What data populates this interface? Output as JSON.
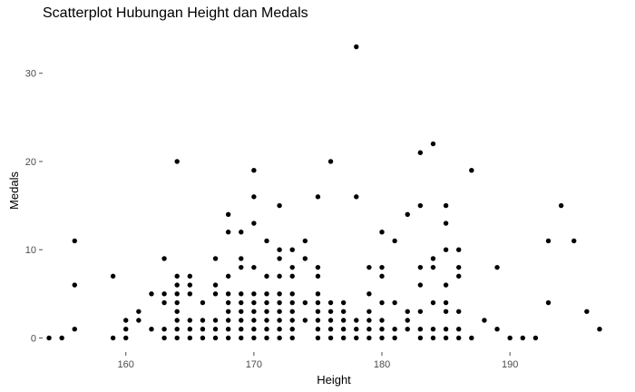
{
  "chart_data": {
    "type": "scatter",
    "title": "Scatterplot Hubungan Height dan Medals",
    "xlabel": "Height",
    "ylabel": "Medals",
    "xlim": [
      153.5,
      197.5
    ],
    "ylim": [
      -1.6,
      34.6
    ],
    "xticks": [
      160,
      170,
      180,
      190
    ],
    "yticks": [
      0,
      10,
      20,
      30
    ],
    "grid": false,
    "legend": "none",
    "point_color": "#000000",
    "points": [
      {
        "x": 154,
        "y": 0
      },
      {
        "x": 155,
        "y": 0
      },
      {
        "x": 156,
        "y": 1
      },
      {
        "x": 156,
        "y": 6
      },
      {
        "x": 156,
        "y": 11
      },
      {
        "x": 159,
        "y": 0
      },
      {
        "x": 159,
        "y": 7
      },
      {
        "x": 160,
        "y": 0
      },
      {
        "x": 160,
        "y": 1
      },
      {
        "x": 160,
        "y": 2
      },
      {
        "x": 161,
        "y": 2
      },
      {
        "x": 161,
        "y": 3
      },
      {
        "x": 162,
        "y": 1
      },
      {
        "x": 162,
        "y": 5
      },
      {
        "x": 163,
        "y": 0
      },
      {
        "x": 163,
        "y": 1
      },
      {
        "x": 163,
        "y": 4
      },
      {
        "x": 163,
        "y": 5
      },
      {
        "x": 163,
        "y": 9
      },
      {
        "x": 164,
        "y": 0
      },
      {
        "x": 164,
        "y": 1
      },
      {
        "x": 164,
        "y": 2
      },
      {
        "x": 164,
        "y": 3
      },
      {
        "x": 164,
        "y": 4
      },
      {
        "x": 164,
        "y": 5
      },
      {
        "x": 164,
        "y": 6
      },
      {
        "x": 164,
        "y": 7
      },
      {
        "x": 164,
        "y": 20
      },
      {
        "x": 165,
        "y": 0
      },
      {
        "x": 165,
        "y": 1
      },
      {
        "x": 165,
        "y": 2
      },
      {
        "x": 165,
        "y": 5
      },
      {
        "x": 165,
        "y": 6
      },
      {
        "x": 165,
        "y": 7
      },
      {
        "x": 166,
        "y": 0
      },
      {
        "x": 166,
        "y": 1
      },
      {
        "x": 166,
        "y": 2
      },
      {
        "x": 166,
        "y": 4
      },
      {
        "x": 167,
        "y": 0
      },
      {
        "x": 167,
        "y": 1
      },
      {
        "x": 167,
        "y": 2
      },
      {
        "x": 167,
        "y": 5
      },
      {
        "x": 167,
        "y": 6
      },
      {
        "x": 167,
        "y": 9
      },
      {
        "x": 168,
        "y": 0
      },
      {
        "x": 168,
        "y": 1
      },
      {
        "x": 168,
        "y": 2
      },
      {
        "x": 168,
        "y": 3
      },
      {
        "x": 168,
        "y": 4
      },
      {
        "x": 168,
        "y": 5
      },
      {
        "x": 168,
        "y": 7
      },
      {
        "x": 168,
        "y": 12
      },
      {
        "x": 168,
        "y": 14
      },
      {
        "x": 169,
        "y": 0
      },
      {
        "x": 169,
        "y": 1
      },
      {
        "x": 169,
        "y": 2
      },
      {
        "x": 169,
        "y": 3
      },
      {
        "x": 169,
        "y": 4
      },
      {
        "x": 169,
        "y": 5
      },
      {
        "x": 169,
        "y": 8
      },
      {
        "x": 169,
        "y": 9
      },
      {
        "x": 169,
        "y": 12
      },
      {
        "x": 170,
        "y": 0
      },
      {
        "x": 170,
        "y": 1
      },
      {
        "x": 170,
        "y": 2
      },
      {
        "x": 170,
        "y": 3
      },
      {
        "x": 170,
        "y": 4
      },
      {
        "x": 170,
        "y": 5
      },
      {
        "x": 170,
        "y": 8
      },
      {
        "x": 170,
        "y": 13
      },
      {
        "x": 170,
        "y": 16
      },
      {
        "x": 170,
        "y": 19
      },
      {
        "x": 171,
        "y": 0
      },
      {
        "x": 171,
        "y": 1
      },
      {
        "x": 171,
        "y": 2
      },
      {
        "x": 171,
        "y": 3
      },
      {
        "x": 171,
        "y": 4
      },
      {
        "x": 171,
        "y": 5
      },
      {
        "x": 171,
        "y": 7
      },
      {
        "x": 171,
        "y": 11
      },
      {
        "x": 172,
        "y": 0
      },
      {
        "x": 172,
        "y": 1
      },
      {
        "x": 172,
        "y": 2
      },
      {
        "x": 172,
        "y": 3
      },
      {
        "x": 172,
        "y": 4
      },
      {
        "x": 172,
        "y": 5
      },
      {
        "x": 172,
        "y": 7
      },
      {
        "x": 172,
        "y": 9
      },
      {
        "x": 172,
        "y": 10
      },
      {
        "x": 172,
        "y": 15
      },
      {
        "x": 173,
        "y": 0
      },
      {
        "x": 173,
        "y": 1
      },
      {
        "x": 173,
        "y": 2
      },
      {
        "x": 173,
        "y": 3
      },
      {
        "x": 173,
        "y": 4
      },
      {
        "x": 173,
        "y": 5
      },
      {
        "x": 173,
        "y": 7
      },
      {
        "x": 173,
        "y": 8
      },
      {
        "x": 173,
        "y": 10
      },
      {
        "x": 174,
        "y": 2
      },
      {
        "x": 174,
        "y": 4
      },
      {
        "x": 174,
        "y": 9
      },
      {
        "x": 174,
        "y": 11
      },
      {
        "x": 175,
        "y": 0
      },
      {
        "x": 175,
        "y": 1
      },
      {
        "x": 175,
        "y": 2
      },
      {
        "x": 175,
        "y": 3
      },
      {
        "x": 175,
        "y": 4
      },
      {
        "x": 175,
        "y": 5
      },
      {
        "x": 175,
        "y": 7
      },
      {
        "x": 175,
        "y": 8
      },
      {
        "x": 175,
        "y": 16
      },
      {
        "x": 176,
        "y": 0
      },
      {
        "x": 176,
        "y": 1
      },
      {
        "x": 176,
        "y": 2
      },
      {
        "x": 176,
        "y": 3
      },
      {
        "x": 176,
        "y": 4
      },
      {
        "x": 176,
        "y": 20
      },
      {
        "x": 177,
        "y": 0
      },
      {
        "x": 177,
        "y": 1
      },
      {
        "x": 177,
        "y": 2
      },
      {
        "x": 177,
        "y": 3
      },
      {
        "x": 177,
        "y": 4
      },
      {
        "x": 178,
        "y": 0
      },
      {
        "x": 178,
        "y": 1
      },
      {
        "x": 178,
        "y": 2
      },
      {
        "x": 178,
        "y": 16
      },
      {
        "x": 178,
        "y": 33
      },
      {
        "x": 179,
        "y": 0
      },
      {
        "x": 179,
        "y": 1
      },
      {
        "x": 179,
        "y": 2
      },
      {
        "x": 179,
        "y": 3
      },
      {
        "x": 179,
        "y": 5
      },
      {
        "x": 179,
        "y": 8
      },
      {
        "x": 180,
        "y": 0
      },
      {
        "x": 180,
        "y": 1
      },
      {
        "x": 180,
        "y": 2
      },
      {
        "x": 180,
        "y": 4
      },
      {
        "x": 180,
        "y": 7
      },
      {
        "x": 180,
        "y": 8
      },
      {
        "x": 180,
        "y": 12
      },
      {
        "x": 181,
        "y": 0
      },
      {
        "x": 181,
        "y": 1
      },
      {
        "x": 181,
        "y": 4
      },
      {
        "x": 181,
        "y": 11
      },
      {
        "x": 182,
        "y": 1
      },
      {
        "x": 182,
        "y": 2
      },
      {
        "x": 182,
        "y": 3
      },
      {
        "x": 182,
        "y": 14
      },
      {
        "x": 183,
        "y": 0
      },
      {
        "x": 183,
        "y": 1
      },
      {
        "x": 183,
        "y": 3
      },
      {
        "x": 183,
        "y": 6
      },
      {
        "x": 183,
        "y": 8
      },
      {
        "x": 183,
        "y": 15
      },
      {
        "x": 183,
        "y": 21
      },
      {
        "x": 184,
        "y": 0
      },
      {
        "x": 184,
        "y": 1
      },
      {
        "x": 184,
        "y": 4
      },
      {
        "x": 184,
        "y": 8
      },
      {
        "x": 184,
        "y": 9
      },
      {
        "x": 184,
        "y": 22
      },
      {
        "x": 185,
        "y": 0
      },
      {
        "x": 185,
        "y": 1
      },
      {
        "x": 185,
        "y": 3
      },
      {
        "x": 185,
        "y": 4
      },
      {
        "x": 185,
        "y": 6
      },
      {
        "x": 185,
        "y": 10
      },
      {
        "x": 185,
        "y": 13
      },
      {
        "x": 185,
        "y": 15
      },
      {
        "x": 186,
        "y": 0
      },
      {
        "x": 186,
        "y": 1
      },
      {
        "x": 186,
        "y": 3
      },
      {
        "x": 186,
        "y": 7
      },
      {
        "x": 186,
        "y": 8
      },
      {
        "x": 186,
        "y": 10
      },
      {
        "x": 187,
        "y": 0
      },
      {
        "x": 187,
        "y": 19
      },
      {
        "x": 188,
        "y": 2
      },
      {
        "x": 189,
        "y": 1
      },
      {
        "x": 189,
        "y": 8
      },
      {
        "x": 190,
        "y": 0
      },
      {
        "x": 191,
        "y": 0
      },
      {
        "x": 192,
        "y": 0
      },
      {
        "x": 193,
        "y": 4
      },
      {
        "x": 193,
        "y": 11
      },
      {
        "x": 194,
        "y": 15
      },
      {
        "x": 195,
        "y": 11
      },
      {
        "x": 196,
        "y": 3
      },
      {
        "x": 197,
        "y": 1
      }
    ]
  }
}
